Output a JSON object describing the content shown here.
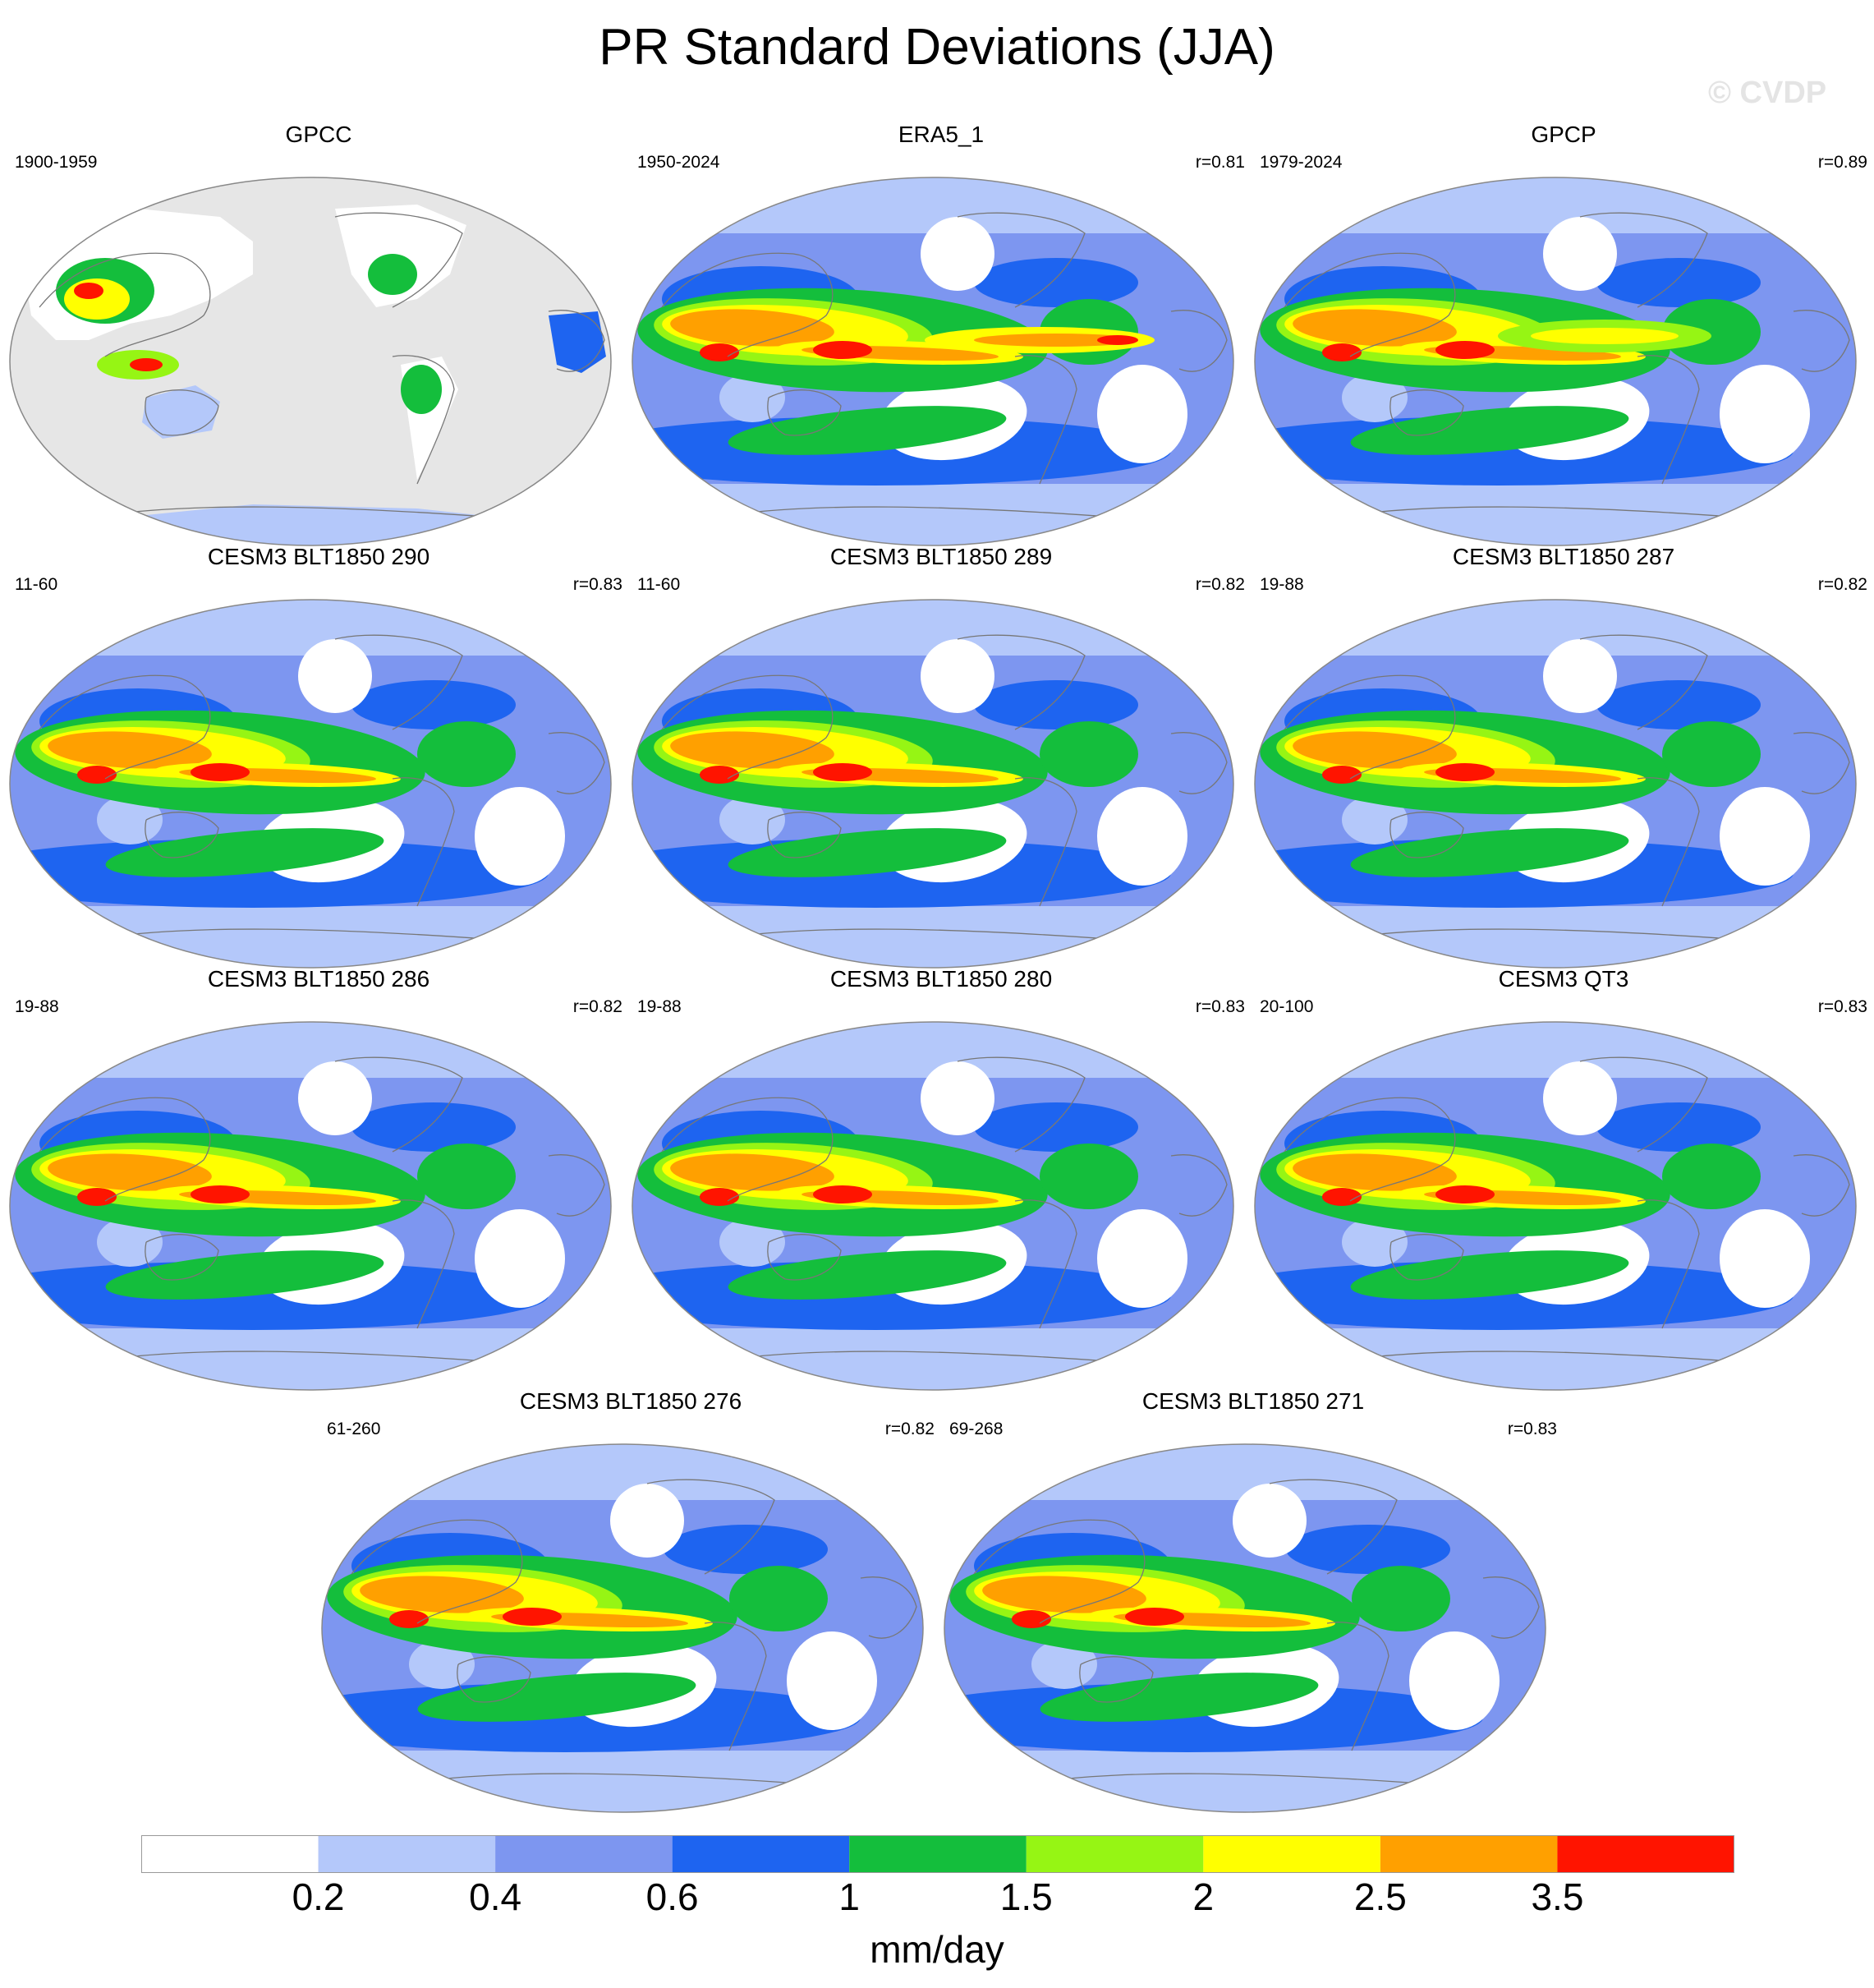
{
  "title": "PR Standard Deviations (JJA)",
  "watermark": "© CVDP",
  "colors": {
    "ocean_bg": "#eeeeee",
    "levels": [
      "#ffffff",
      "#b4c8fa",
      "#7d96f0",
      "#1e64f0",
      "#14be3c",
      "#96f514",
      "#ffff00",
      "#ffa000",
      "#ff1400"
    ],
    "border": "#888888",
    "coast": "#777777"
  },
  "panels": [
    {
      "title": "GPCC",
      "period": "1900-1959",
      "corr": "",
      "variant": "land_only"
    },
    {
      "title": "ERA5_1",
      "period": "1950-2024",
      "corr": "r=0.81",
      "variant": "reanalysis"
    },
    {
      "title": "GPCP",
      "period": "1979-2024",
      "corr": "r=0.89",
      "variant": "obs"
    },
    {
      "title": "CESM3 BLT1850 290",
      "period": "11-60",
      "corr": "r=0.83",
      "variant": "model"
    },
    {
      "title": "CESM3 BLT1850 289",
      "period": "11-60",
      "corr": "r=0.82",
      "variant": "model"
    },
    {
      "title": "CESM3 BLT1850 287",
      "period": "19-88",
      "corr": "r=0.82",
      "variant": "model"
    },
    {
      "title": "CESM3 BLT1850 286",
      "period": "19-88",
      "corr": "r=0.82",
      "variant": "model"
    },
    {
      "title": "CESM3 BLT1850 280",
      "period": "19-88",
      "corr": "r=0.83",
      "variant": "model"
    },
    {
      "title": "CESM3 QT3",
      "period": "20-100",
      "corr": "r=0.83",
      "variant": "model"
    },
    {
      "title": "CESM3 BLT1850 276",
      "period": "61-260",
      "corr": "r=0.82",
      "variant": "model"
    },
    {
      "title": "CESM3 BLT1850 271",
      "period": "69-268",
      "corr": "r=0.83",
      "variant": "model"
    }
  ],
  "colorbar": {
    "labels": [
      "0.2",
      "0.4",
      "0.6",
      "1",
      "1.5",
      "2",
      "2.5",
      "3.5"
    ],
    "units": "mm/day"
  }
}
